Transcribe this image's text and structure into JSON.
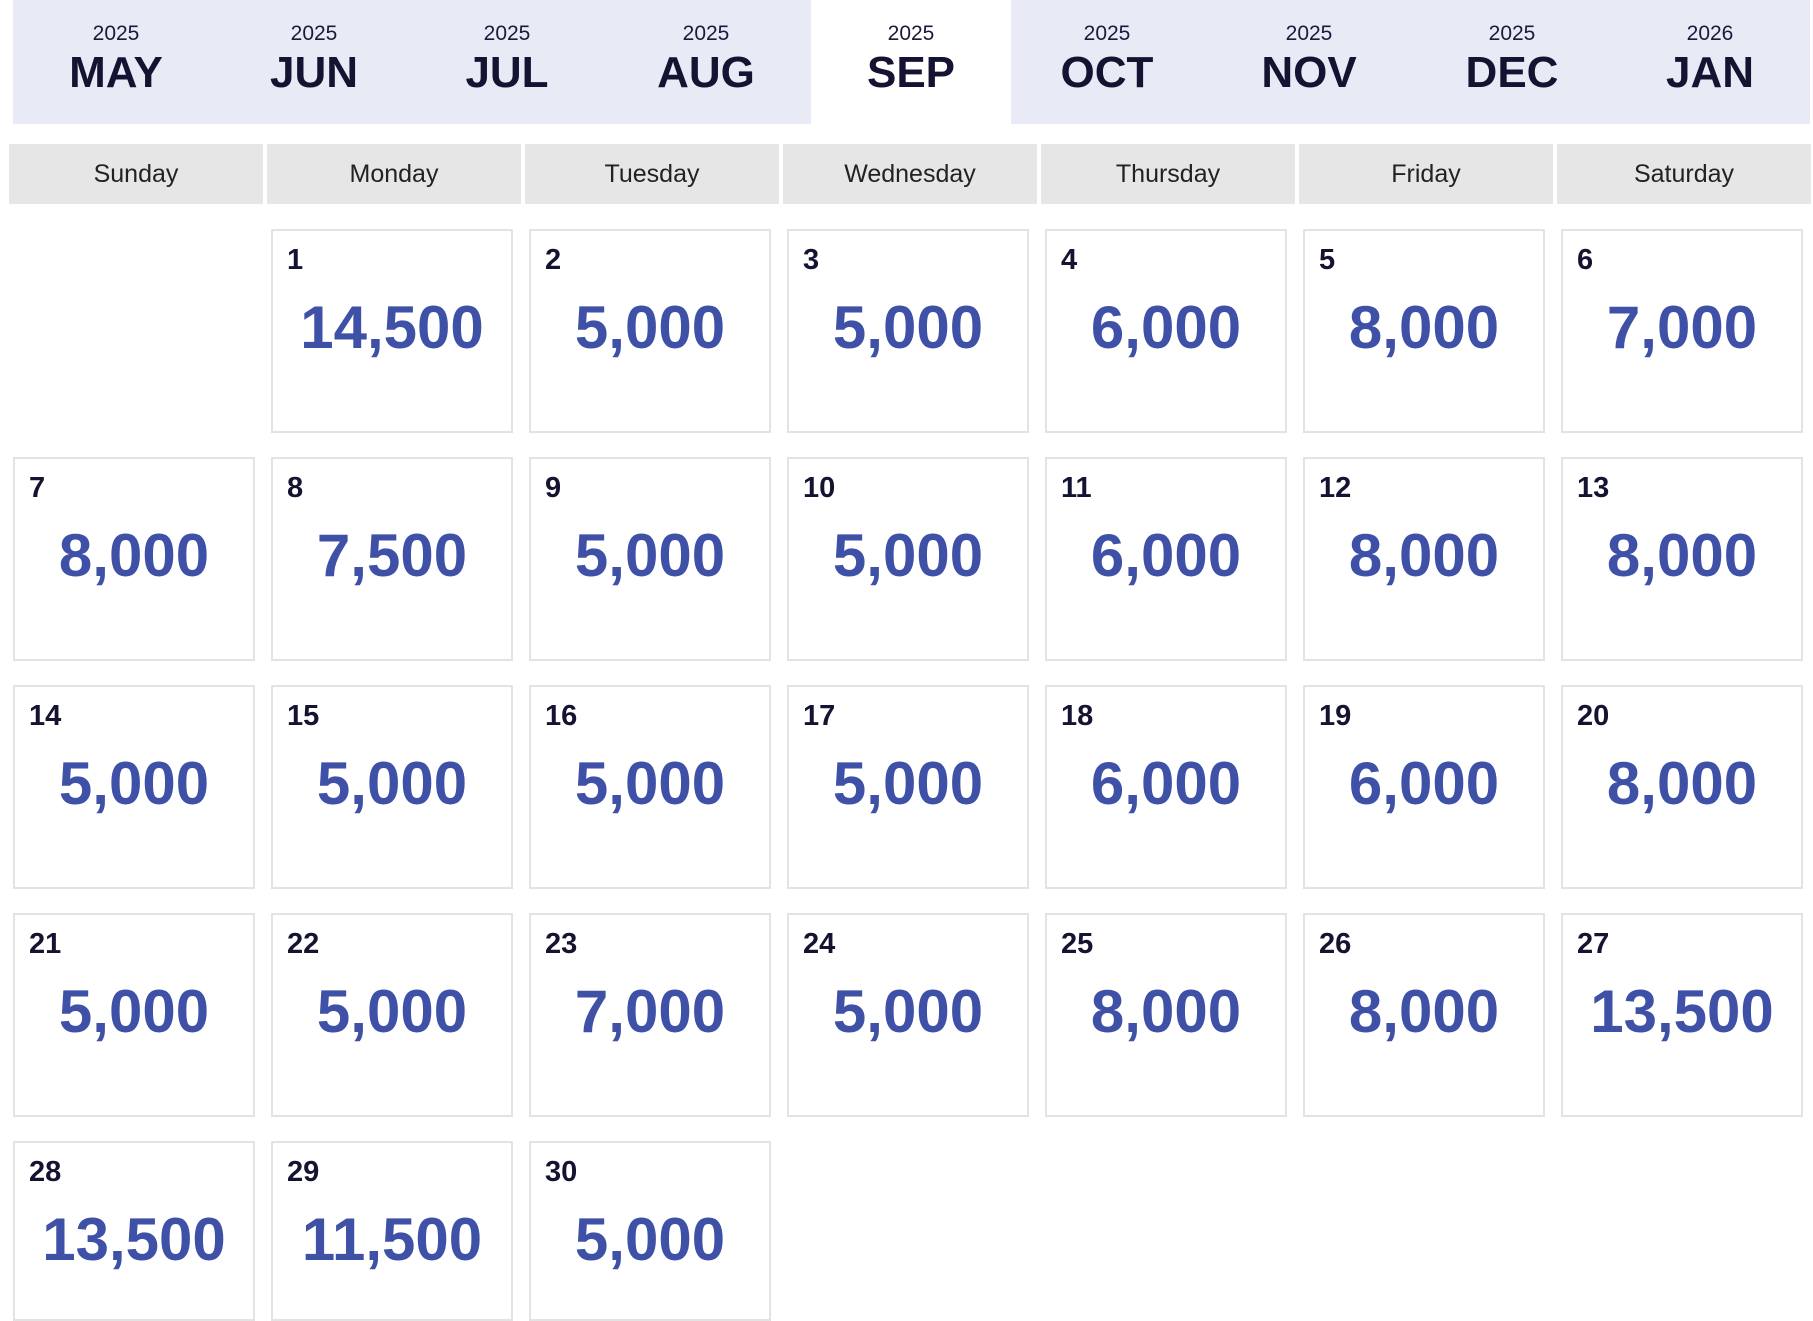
{
  "months": [
    {
      "year": "2025",
      "name": "MAY"
    },
    {
      "year": "2025",
      "name": "JUN"
    },
    {
      "year": "2025",
      "name": "JUL"
    },
    {
      "year": "2025",
      "name": "AUG"
    },
    {
      "year": "2025",
      "name": "SEP",
      "active": true
    },
    {
      "year": "2025",
      "name": "OCT"
    },
    {
      "year": "2025",
      "name": "NOV"
    },
    {
      "year": "2025",
      "name": "DEC"
    },
    {
      "year": "2026",
      "name": "JAN"
    }
  ],
  "weekdays": [
    "Sunday",
    "Monday",
    "Tuesday",
    "Wednesday",
    "Thursday",
    "Friday",
    "Saturday"
  ],
  "days": [
    {
      "day": "1",
      "price": "14,500"
    },
    {
      "day": "2",
      "price": "5,000"
    },
    {
      "day": "3",
      "price": "5,000"
    },
    {
      "day": "4",
      "price": "6,000"
    },
    {
      "day": "5",
      "price": "8,000"
    },
    {
      "day": "6",
      "price": "7,000"
    },
    {
      "day": "7",
      "price": "8,000"
    },
    {
      "day": "8",
      "price": "7,500"
    },
    {
      "day": "9",
      "price": "5,000"
    },
    {
      "day": "10",
      "price": "5,000"
    },
    {
      "day": "11",
      "price": "6,000"
    },
    {
      "day": "12",
      "price": "8,000"
    },
    {
      "day": "13",
      "price": "8,000"
    },
    {
      "day": "14",
      "price": "5,000"
    },
    {
      "day": "15",
      "price": "5,000"
    },
    {
      "day": "16",
      "price": "5,000"
    },
    {
      "day": "17",
      "price": "5,000"
    },
    {
      "day": "18",
      "price": "6,000"
    },
    {
      "day": "19",
      "price": "6,000"
    },
    {
      "day": "20",
      "price": "8,000"
    },
    {
      "day": "21",
      "price": "5,000"
    },
    {
      "day": "22",
      "price": "5,000"
    },
    {
      "day": "23",
      "price": "7,000"
    },
    {
      "day": "24",
      "price": "5,000"
    },
    {
      "day": "25",
      "price": "8,000"
    },
    {
      "day": "26",
      "price": "8,000"
    },
    {
      "day": "27",
      "price": "13,500"
    },
    {
      "day": "28",
      "price": "13,500"
    },
    {
      "day": "29",
      "price": "11,500"
    },
    {
      "day": "30",
      "price": "5,000"
    }
  ],
  "colors": {
    "month_bar": "#e8eaf6",
    "price": "#3f51a7",
    "text_dark": "#141432",
    "weekday_bg": "#e6e6e6"
  }
}
